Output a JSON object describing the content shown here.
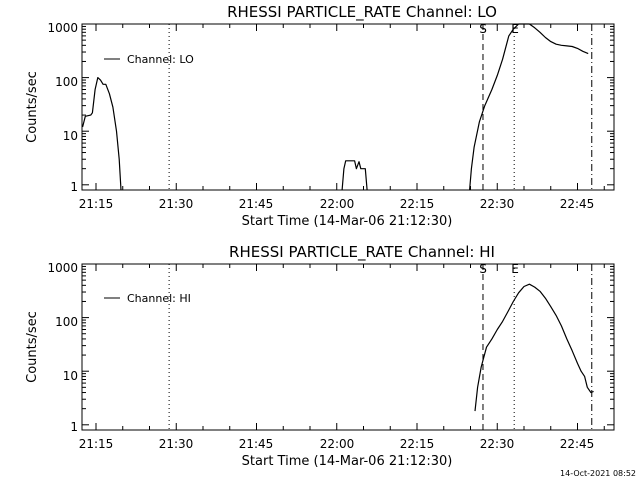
{
  "timestamp": "14-Oct-2021 08:52",
  "chart_data": [
    {
      "type": "line",
      "title": "RHESSI PARTICLE_RATE Channel: LO",
      "xlabel": "Start Time (14-Mar-06 21:12:30)",
      "ylabel": "Counts/sec",
      "yscale": "log",
      "ylim": [
        0.8,
        1000
      ],
      "y_ticks": [
        1,
        10,
        100,
        1000
      ],
      "y_tick_labels": [
        "1",
        "10",
        "100",
        "1000"
      ],
      "xlim_minutes": [
        21.2,
        22.85
      ],
      "x_ticks": [
        "21:15",
        "21:30",
        "21:45",
        "22:00",
        "22:15",
        "22:30",
        "22:45"
      ],
      "legend": "top-left",
      "series": [
        {
          "name": "Channel: LO",
          "color": "#000000",
          "segments": [
            [
              [
                "21:12:30",
                12
              ],
              [
                "21:13:00",
                19
              ],
              [
                "21:14:00",
                20
              ],
              [
                "21:14:20",
                22
              ],
              [
                "21:14:50",
                60
              ],
              [
                "21:15:20",
                100
              ],
              [
                "21:15:50",
                90
              ],
              [
                "21:16:20",
                75
              ],
              [
                "21:16:50",
                75
              ],
              [
                "21:17:30",
                50
              ],
              [
                "21:18:10",
                28
              ],
              [
                "21:18:50",
                10
              ],
              [
                "21:19:20",
                3
              ],
              [
                "21:19:40",
                0.8
              ]
            ],
            [
              [
                "22:01:00",
                0.8
              ],
              [
                "22:01:20",
                2
              ],
              [
                "22:01:40",
                2.8
              ],
              [
                "22:02:30",
                2.8
              ],
              [
                "22:03:20",
                2.8
              ],
              [
                "22:03:40",
                2
              ],
              [
                "22:04:10",
                2.7
              ],
              [
                "22:04:30",
                2
              ],
              [
                "22:05:20",
                2
              ],
              [
                "22:05:40",
                0.8
              ]
            ],
            [
              [
                "22:24:50",
                0.8
              ],
              [
                "22:25:10",
                2
              ],
              [
                "22:25:40",
                5
              ],
              [
                "22:26:40",
                15
              ],
              [
                "22:27:40",
                30
              ],
              [
                "22:29:00",
                60
              ],
              [
                "22:30:00",
                110
              ],
              [
                "22:31:00",
                220
              ],
              [
                "22:32:10",
                600
              ],
              [
                "22:33:00",
                800
              ],
              [
                "22:34:00",
                1050
              ],
              [
                "22:35:00",
                1080
              ],
              [
                "22:36:00",
                1000
              ],
              [
                "22:37:00",
                850
              ],
              [
                "22:38:00",
                700
              ],
              [
                "22:39:00",
                560
              ],
              [
                "22:40:00",
                470
              ],
              [
                "22:41:00",
                420
              ],
              [
                "22:42:00",
                400
              ],
              [
                "22:43:00",
                390
              ],
              [
                "22:44:00",
                380
              ],
              [
                "22:45:00",
                350
              ],
              [
                "22:46:00",
                310
              ],
              [
                "22:47:00",
                280
              ]
            ]
          ]
        }
      ],
      "vertical_lines": [
        {
          "time": "21:28:40",
          "style": "dotted"
        },
        {
          "time": "22:27:20",
          "style": "dashed",
          "label": "S"
        },
        {
          "time": "22:33:10",
          "style": "dotted",
          "label": "E"
        },
        {
          "time": "22:47:40",
          "style": "dashdot"
        }
      ]
    },
    {
      "type": "line",
      "title": "RHESSI PARTICLE_RATE Channel: HI",
      "xlabel": "Start Time (14-Mar-06 21:12:30)",
      "ylabel": "Counts/sec",
      "yscale": "log",
      "ylim": [
        0.8,
        1000
      ],
      "y_ticks": [
        1,
        10,
        100,
        1000
      ],
      "y_tick_labels": [
        "1",
        "10",
        "100",
        "1000"
      ],
      "xlim_minutes": [
        21.2,
        22.85
      ],
      "x_ticks": [
        "21:15",
        "21:30",
        "21:45",
        "22:00",
        "22:15",
        "22:30",
        "22:45"
      ],
      "legend": "top-left",
      "series": [
        {
          "name": "Channel: HI",
          "color": "#000000",
          "segments": [
            [
              [
                "22:25:50",
                1.8
              ],
              [
                "22:26:20",
                5
              ],
              [
                "22:27:00",
                12
              ],
              [
                "22:28:00",
                28
              ],
              [
                "22:29:00",
                40
              ],
              [
                "22:30:00",
                60
              ],
              [
                "22:31:00",
                85
              ],
              [
                "22:32:00",
                130
              ],
              [
                "22:33:00",
                200
              ],
              [
                "22:34:00",
                290
              ],
              [
                "22:35:00",
                380
              ],
              [
                "22:36:00",
                420
              ],
              [
                "22:37:00",
                370
              ],
              [
                "22:38:00",
                310
              ],
              [
                "22:39:00",
                230
              ],
              [
                "22:40:00",
                160
              ],
              [
                "22:41:00",
                110
              ],
              [
                "22:42:00",
                70
              ],
              [
                "22:43:00",
                40
              ],
              [
                "22:44:00",
                24
              ],
              [
                "22:45:00",
                14
              ],
              [
                "22:45:40",
                10
              ],
              [
                "22:46:20",
                8
              ],
              [
                "22:46:50",
                5
              ],
              [
                "22:47:30",
                4
              ],
              [
                "22:48:00",
                4.2
              ]
            ]
          ]
        }
      ],
      "vertical_lines": [
        {
          "time": "21:28:40",
          "style": "dotted"
        },
        {
          "time": "22:27:20",
          "style": "dashed",
          "label": "S"
        },
        {
          "time": "22:33:10",
          "style": "dotted",
          "label": "E"
        },
        {
          "time": "22:47:40",
          "style": "dashdot"
        }
      ]
    }
  ]
}
